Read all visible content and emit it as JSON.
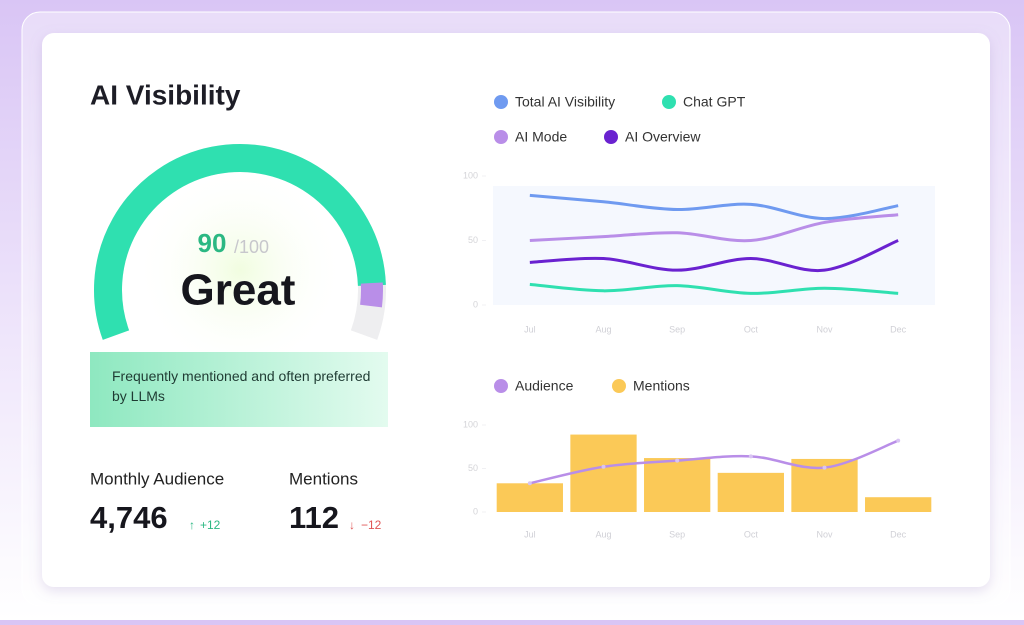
{
  "title": "AI Visibility",
  "gauge": {
    "score": 90,
    "max": 100,
    "max_label": "/100",
    "rating": "Great"
  },
  "description": "Frequently mentioned and often preferred by LLMs",
  "stats": [
    {
      "label": "Monthly Audience",
      "value": "4,746",
      "change": "+12",
      "direction": "up"
    },
    {
      "label": "Mentions",
      "value": "112",
      "change": "−12",
      "direction": "down"
    }
  ],
  "chart_data": [
    {
      "type": "line",
      "categories": [
        "Jul",
        "Aug",
        "Sep",
        "Oct",
        "Nov",
        "Dec"
      ],
      "ylim": [
        0,
        100
      ],
      "yticks": [
        0,
        50,
        100
      ],
      "series": [
        {
          "name": "Total AI Visibility",
          "color": "#6f9af0",
          "values": [
            85,
            80,
            74,
            78,
            67,
            77
          ]
        },
        {
          "name": "Chat GPT",
          "color": "#2fe0b0",
          "values": [
            16,
            11,
            15,
            9,
            13,
            9
          ]
        },
        {
          "name": "AI Mode",
          "color": "#b98ee8",
          "values": [
            50,
            53,
            56,
            50,
            64,
            70
          ]
        },
        {
          "name": "AI Overview",
          "color": "#6a22d0",
          "values": [
            33,
            36,
            27,
            36,
            27,
            50
          ]
        }
      ]
    },
    {
      "type": "bar",
      "categories": [
        "Jul",
        "Aug",
        "Sep",
        "Oct",
        "Nov",
        "Dec"
      ],
      "ylim": [
        0,
        100
      ],
      "yticks": [
        0,
        50,
        100
      ],
      "series": [
        {
          "name": "Audience",
          "type": "line",
          "color": "#b98ee8",
          "values": [
            33,
            52,
            59,
            64,
            51,
            82
          ]
        },
        {
          "name": "Mentions",
          "type": "bar",
          "color": "#fbc957",
          "values": [
            33,
            89,
            62,
            45,
            61,
            17
          ]
        }
      ]
    }
  ]
}
